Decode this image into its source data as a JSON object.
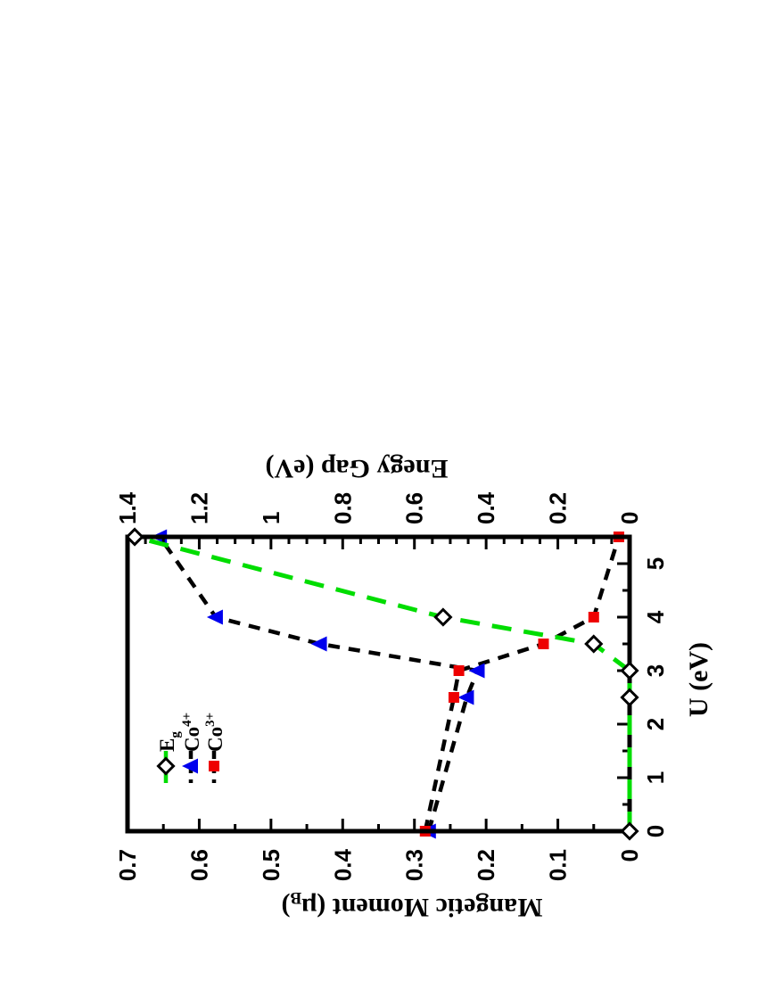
{
  "figure": {
    "background": "#ffffff",
    "frame_color": "#000000",
    "note": "entire plot rotated 90 degrees counterclockwise on portrait page"
  },
  "chart_data": {
    "type": "line",
    "title": "",
    "x": [
      0,
      2.5,
      3,
      3.5,
      4,
      5.5
    ],
    "x_axis": {
      "label": "U (eV)",
      "min": 0,
      "max": 5.5,
      "major_ticks": [
        0,
        1,
        2,
        3,
        4,
        5
      ],
      "tick_labels": [
        "0",
        "1",
        "2",
        "3",
        "4",
        "5"
      ],
      "minor_step": 0.5
    },
    "y_axis": {
      "label_prefix": "Mangetic Moment (μ",
      "label_sub": "B",
      "label_suffix": ")",
      "min": 0,
      "max": 0.7,
      "major_ticks": [
        0,
        0.1,
        0.2,
        0.3,
        0.4,
        0.5,
        0.6,
        0.7
      ],
      "tick_labels": [
        "0",
        "0.1",
        "0.2",
        "0.3",
        "0.4",
        "0.5",
        "0.6",
        "0.7"
      ],
      "minor_step": 0.05
    },
    "y2_axis": {
      "label": "Enegy Gap (eV)",
      "min": 0,
      "max": 1.4,
      "major_ticks": [
        0,
        0.2,
        0.4,
        0.6,
        0.8,
        1,
        1.2,
        1.4
      ],
      "tick_labels": [
        "0",
        "0.2",
        "0.4",
        "0.6",
        "0.8",
        "1",
        "1.2",
        "1.4"
      ],
      "minor_step": 0.05
    },
    "series": [
      {
        "name": "Eg",
        "axis": "y2",
        "values": [
          0,
          0,
          0,
          0.1,
          0.52,
          1.38
        ],
        "line_color": "#00dd00",
        "line_style": "long-dash",
        "marker": "diamond-open",
        "marker_fill": "#ffffff",
        "marker_stroke": "#000000"
      },
      {
        "name": "Co4+",
        "axis": "y",
        "values": [
          0.28,
          0.227,
          0.212,
          0.432,
          0.577,
          0.655
        ],
        "line_color": "#000000",
        "line_style": "dash",
        "marker": "triangle-left",
        "marker_fill": "#0000ee"
      },
      {
        "name": "Co3+",
        "axis": "y",
        "values": [
          0.285,
          0.245,
          0.238,
          0.12,
          0.05,
          0.015
        ],
        "line_color": "#000000",
        "line_style": "dash",
        "marker": "square",
        "marker_fill": "#ee0000"
      }
    ],
    "legend": {
      "position": "inside-upper-left-of-unrotated-plot",
      "entries": [
        {
          "main": "E",
          "script": "g",
          "script_type": "sub",
          "marker": "diamond-open",
          "line_color": "#00dd00"
        },
        {
          "main": "Co",
          "script": "4+",
          "script_type": "sup",
          "marker": "triangle-left",
          "line_color": "#000000"
        },
        {
          "main": "Co",
          "script": "3+",
          "script_type": "sup",
          "marker": "square",
          "line_color": "#000000"
        }
      ]
    },
    "grid": false
  }
}
